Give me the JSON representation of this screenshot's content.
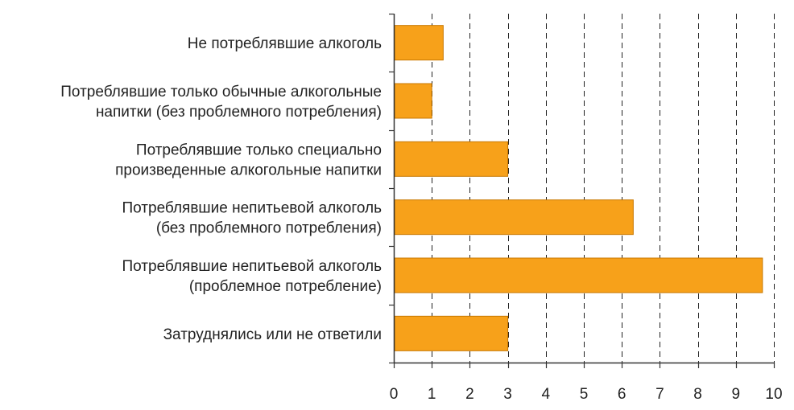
{
  "chart_data": {
    "type": "bar",
    "orientation": "horizontal",
    "categories": [
      [
        "Не потреблявшие алкоголь"
      ],
      [
        "Потреблявшие только обычные алкогольные",
        "напитки (без проблемного потребления)"
      ],
      [
        "Потреблявшие только специально",
        "произведенные алкогольные напитки"
      ],
      [
        "Потреблявшие непитьевой алкоголь",
        "(без проблемного потребления)"
      ],
      [
        "Потреблявшие непитьевой алкоголь",
        "(проблемное потребление)"
      ],
      [
        "Затруднялись или не ответили"
      ]
    ],
    "values": [
      1.3,
      1.0,
      3.0,
      6.3,
      9.7,
      3.0
    ],
    "xlim": [
      0,
      10
    ],
    "xticks": [
      0,
      1,
      2,
      3,
      4,
      5,
      6,
      7,
      8,
      9,
      10
    ],
    "grid": "vertical dashed",
    "colors": {
      "bar_fill": "#f7a11a",
      "bar_stroke": "#c87800",
      "axis": "#333333",
      "grid": "#222222"
    }
  }
}
